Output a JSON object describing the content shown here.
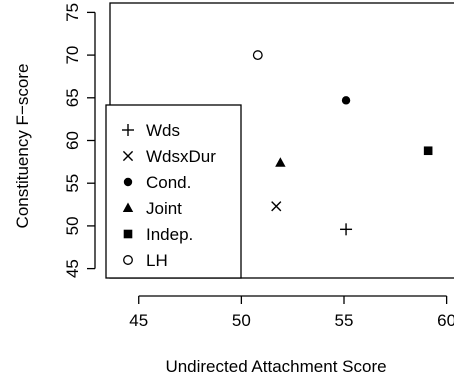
{
  "chart_data": {
    "type": "scatter",
    "title": "",
    "xlabel": "Undirected Attachment Score",
    "ylabel": "Constituency F−score",
    "xlim": [
      43.6,
      60.7
    ],
    "ylim": [
      43.9,
      76.1
    ],
    "xticks": [
      "45",
      "50",
      "55",
      "60"
    ],
    "yticks": [
      "45",
      "50",
      "55",
      "60",
      "65",
      "70",
      "75"
    ],
    "grid": false,
    "legend_position": "left",
    "series": [
      {
        "name": "Wds",
        "marker": "plus",
        "x": 55.1,
        "y": 49.6
      },
      {
        "name": "WdsxDur",
        "marker": "cross",
        "x": 51.7,
        "y": 52.3
      },
      {
        "name": "Cond.",
        "marker": "dot",
        "x": 55.1,
        "y": 64.7
      },
      {
        "name": "Joint",
        "marker": "triangle",
        "x": 51.9,
        "y": 57.4
      },
      {
        "name": "Indep.",
        "marker": "square",
        "x": 59.1,
        "y": 58.8
      },
      {
        "name": "LH",
        "marker": "circle",
        "x": 50.8,
        "y": 70.0
      }
    ]
  }
}
